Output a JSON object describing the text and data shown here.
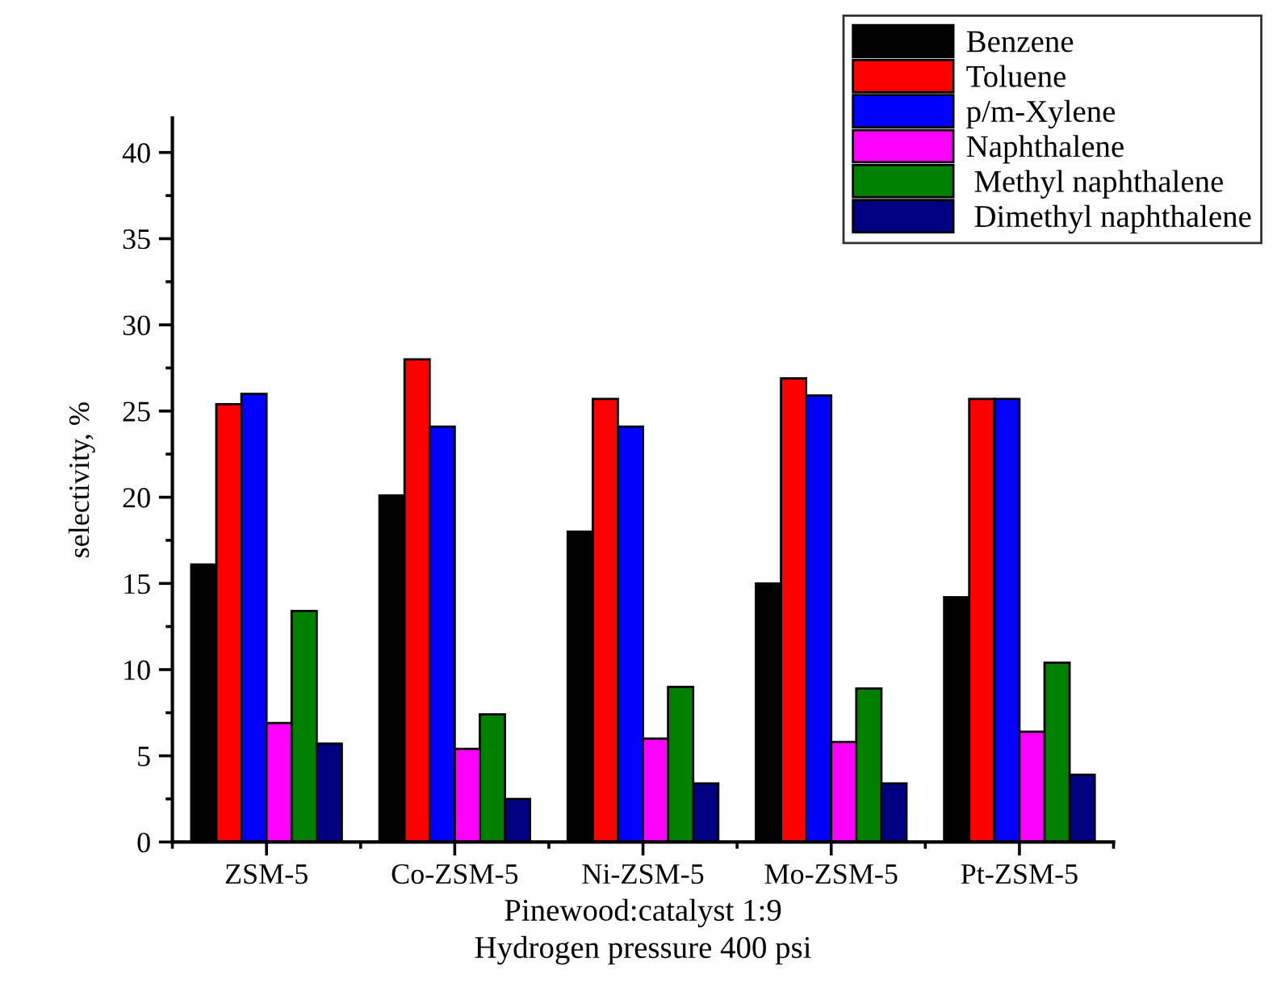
{
  "chart_data": {
    "type": "bar",
    "xlabel": "Pinewood:catalyst 1:9\nHydrogen pressure 400 psi",
    "ylabel": "selectivity, %",
    "categories": [
      "ZSM-5",
      "Co-ZSM-5",
      "Ni-ZSM-5",
      "Mo-ZSM-5",
      "Pt-ZSM-5"
    ],
    "series": [
      {
        "name": "Benzene",
        "color": "#000000",
        "values": [
          16.1,
          20.1,
          18.0,
          15.0,
          14.2
        ]
      },
      {
        "name": "Toluene",
        "color": "#ff0000",
        "values": [
          25.4,
          28.0,
          25.7,
          26.9,
          25.7
        ]
      },
      {
        "name": "p/m-Xylene",
        "color": "#0000ff",
        "values": [
          26.0,
          24.1,
          24.1,
          25.9,
          25.7
        ]
      },
      {
        "name": "Naphthalene",
        "color": "#ff00ff",
        "values": [
          6.9,
          5.4,
          6.0,
          5.8,
          6.4
        ]
      },
      {
        "name": " Methyl naphthalene",
        "color": "#008000",
        "values": [
          13.4,
          7.4,
          9.0,
          8.9,
          10.4
        ]
      },
      {
        "name": " Dimethyl naphthalene",
        "color": "#000080",
        "values": [
          5.7,
          2.5,
          3.4,
          3.4,
          3.9
        ]
      }
    ],
    "ylim": [
      0,
      42
    ],
    "yticks": [
      0,
      5,
      10,
      15,
      20,
      25,
      30,
      35,
      40
    ],
    "grid": false,
    "legend": "top right"
  }
}
